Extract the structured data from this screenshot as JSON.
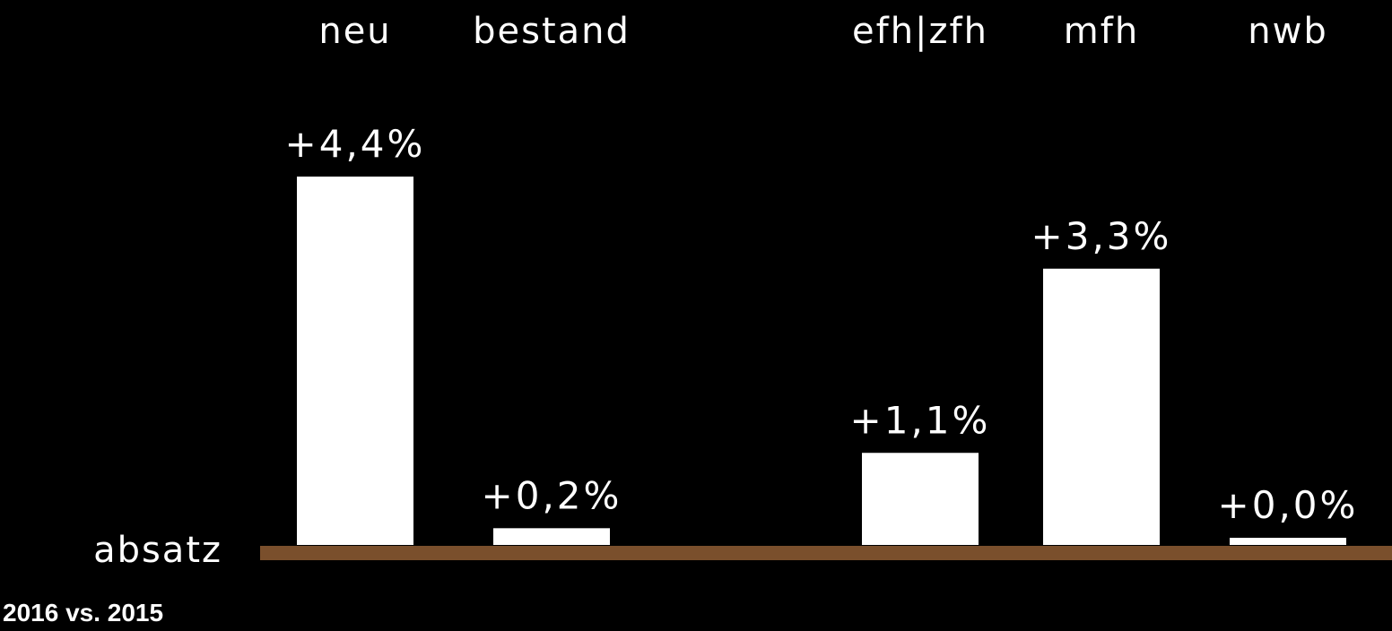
{
  "chart_data": {
    "type": "bar",
    "categories": [
      "neu",
      "bestand",
      "efh|zfh",
      "mfh",
      "nwb"
    ],
    "values": [
      4.4,
      0.2,
      1.1,
      3.3,
      0.0
    ],
    "value_labels": [
      "+4,4%",
      "+0,2%",
      "+1,1%",
      "+3,3%",
      "+0,0%"
    ],
    "row_label": "absatz",
    "footnote": "2016 vs. 2015",
    "title": "",
    "xlabel": "",
    "ylabel": "",
    "ylim": [
      0,
      4.4
    ],
    "grid": false,
    "legend": "none",
    "bar_color": "#ffffff",
    "baseline_color": "#7a4f2c",
    "background_color": "#000000"
  }
}
